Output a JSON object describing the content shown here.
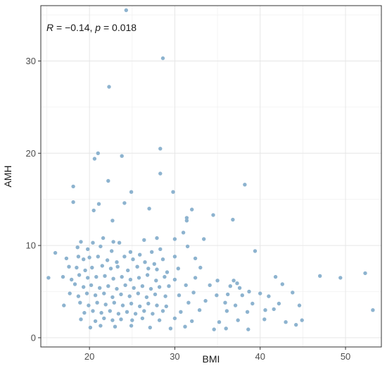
{
  "chart_data": {
    "type": "scatter",
    "xlabel": "BMI",
    "ylabel": "AMH",
    "annotation": {
      "R_label": "R",
      "R_text": " = −0.14, ",
      "p_label": "p",
      "p_text": " = 0.018"
    },
    "xlim": [
      14.3,
      54.2
    ],
    "ylim": [
      -1.0,
      36.0
    ],
    "x_ticks": [
      20,
      30,
      40,
      50
    ],
    "y_ticks": [
      0,
      10,
      20,
      30
    ],
    "grid": true,
    "point_color": "#8db3cf",
    "points": [
      [
        24.3,
        35.5
      ],
      [
        28.6,
        30.3
      ],
      [
        22.3,
        27.2
      ],
      [
        28.3,
        20.5
      ],
      [
        21.0,
        20.0
      ],
      [
        23.8,
        19.7
      ],
      [
        20.6,
        19.4
      ],
      [
        28.3,
        17.8
      ],
      [
        22.2,
        17.0
      ],
      [
        38.2,
        16.6
      ],
      [
        18.1,
        16.4
      ],
      [
        24.9,
        15.8
      ],
      [
        29.8,
        15.8
      ],
      [
        18.1,
        14.7
      ],
      [
        21.1,
        14.5
      ],
      [
        24.1,
        14.6
      ],
      [
        20.5,
        13.8
      ],
      [
        27.0,
        14.0
      ],
      [
        32.0,
        13.9
      ],
      [
        34.5,
        13.3
      ],
      [
        22.7,
        12.7
      ],
      [
        31.4,
        12.7
      ],
      [
        31.4,
        13.0
      ],
      [
        36.8,
        12.8
      ],
      [
        19.0,
        10.4
      ],
      [
        20.4,
        10.3
      ],
      [
        21.6,
        10.8
      ],
      [
        22.8,
        10.4
      ],
      [
        23.5,
        10.3
      ],
      [
        26.4,
        10.6
      ],
      [
        27.9,
        10.8
      ],
      [
        30.0,
        10.7
      ],
      [
        18.6,
        9.8
      ],
      [
        19.8,
        9.6
      ],
      [
        21.3,
        9.9
      ],
      [
        22.6,
        9.4
      ],
      [
        24.8,
        9.3
      ],
      [
        25.9,
        9.0
      ],
      [
        27.3,
        9.3
      ],
      [
        28.3,
        9.6
      ],
      [
        31.0,
        11.4
      ],
      [
        33.4,
        10.7
      ],
      [
        16.0,
        9.2
      ],
      [
        17.3,
        8.6
      ],
      [
        18.7,
        8.8
      ],
      [
        19.3,
        8.5
      ],
      [
        20.0,
        8.7
      ],
      [
        21.0,
        8.8
      ],
      [
        22.1,
        8.4
      ],
      [
        23.2,
        8.2
      ],
      [
        24.1,
        8.8
      ],
      [
        25.1,
        8.5
      ],
      [
        26.5,
        8.2
      ],
      [
        27.6,
        8.0
      ],
      [
        28.6,
        8.5
      ],
      [
        30.0,
        8.8
      ],
      [
        31.5,
        9.9
      ],
      [
        32.4,
        8.6
      ],
      [
        39.4,
        9.4
      ],
      [
        17.6,
        7.7
      ],
      [
        18.5,
        7.6
      ],
      [
        19.5,
        7.3
      ],
      [
        20.3,
        7.6
      ],
      [
        21.5,
        7.8
      ],
      [
        22.5,
        7.5
      ],
      [
        23.3,
        7.7
      ],
      [
        24.5,
        7.3
      ],
      [
        25.6,
        7.7
      ],
      [
        26.9,
        7.5
      ],
      [
        27.9,
        7.4
      ],
      [
        29.1,
        7.1
      ],
      [
        30.4,
        7.5
      ],
      [
        33.0,
        7.6
      ],
      [
        16.9,
        6.6
      ],
      [
        17.9,
        6.3
      ],
      [
        18.8,
        6.8
      ],
      [
        19.8,
        6.5
      ],
      [
        20.8,
        6.6
      ],
      [
        21.8,
        6.7
      ],
      [
        22.8,
        6.4
      ],
      [
        23.8,
        6.6
      ],
      [
        24.8,
        6.3
      ],
      [
        25.8,
        6.5
      ],
      [
        26.8,
        6.8
      ],
      [
        27.8,
        6.2
      ],
      [
        28.8,
        6.6
      ],
      [
        30.0,
        6.3
      ],
      [
        32.4,
        6.5
      ],
      [
        35.0,
        6.2
      ],
      [
        36.9,
        6.2
      ],
      [
        37.3,
        5.9
      ],
      [
        41.8,
        6.6
      ],
      [
        47.0,
        6.7
      ],
      [
        49.4,
        6.5
      ],
      [
        52.3,
        7.0
      ],
      [
        15.2,
        6.5
      ],
      [
        18.3,
        5.8
      ],
      [
        19.3,
        5.5
      ],
      [
        20.2,
        5.7
      ],
      [
        21.2,
        5.4
      ],
      [
        22.2,
        5.6
      ],
      [
        23.2,
        5.3
      ],
      [
        24.2,
        5.7
      ],
      [
        25.2,
        5.4
      ],
      [
        26.2,
        5.6
      ],
      [
        27.2,
        5.3
      ],
      [
        28.2,
        5.5
      ],
      [
        29.3,
        5.6
      ],
      [
        31.3,
        5.7
      ],
      [
        34.1,
        5.7
      ],
      [
        36.5,
        5.6
      ],
      [
        37.6,
        5.4
      ],
      [
        42.6,
        5.8
      ],
      [
        17.7,
        4.8
      ],
      [
        18.7,
        4.5
      ],
      [
        19.7,
        4.8
      ],
      [
        20.7,
        4.6
      ],
      [
        21.7,
        4.8
      ],
      [
        22.7,
        4.4
      ],
      [
        23.7,
        4.7
      ],
      [
        24.7,
        4.5
      ],
      [
        25.7,
        4.8
      ],
      [
        26.7,
        4.4
      ],
      [
        27.7,
        4.7
      ],
      [
        28.9,
        4.5
      ],
      [
        30.5,
        4.6
      ],
      [
        32.2,
        4.9
      ],
      [
        34.9,
        4.6
      ],
      [
        36.2,
        4.7
      ],
      [
        37.9,
        4.6
      ],
      [
        38.7,
        5.0
      ],
      [
        40.0,
        4.8
      ],
      [
        43.8,
        4.9
      ],
      [
        41.0,
        4.5
      ],
      [
        18.9,
        3.8
      ],
      [
        19.9,
        3.5
      ],
      [
        20.9,
        3.8
      ],
      [
        21.9,
        3.6
      ],
      [
        22.9,
        3.8
      ],
      [
        23.9,
        3.5
      ],
      [
        24.9,
        3.7
      ],
      [
        25.9,
        3.4
      ],
      [
        26.9,
        3.7
      ],
      [
        27.9,
        3.5
      ],
      [
        29.0,
        3.4
      ],
      [
        31.6,
        3.8
      ],
      [
        33.6,
        4.0
      ],
      [
        35.9,
        3.8
      ],
      [
        37.1,
        3.5
      ],
      [
        39.1,
        3.7
      ],
      [
        42.2,
        3.7
      ],
      [
        17.0,
        3.5
      ],
      [
        19.4,
        2.7
      ],
      [
        20.4,
        2.9
      ],
      [
        21.4,
        2.7
      ],
      [
        22.4,
        2.9
      ],
      [
        23.4,
        2.6
      ],
      [
        24.4,
        2.8
      ],
      [
        25.4,
        2.6
      ],
      [
        26.4,
        2.9
      ],
      [
        27.4,
        2.6
      ],
      [
        28.6,
        2.9
      ],
      [
        30.7,
        2.8
      ],
      [
        32.9,
        3.0
      ],
      [
        36.1,
        2.9
      ],
      [
        38.5,
        2.8
      ],
      [
        40.6,
        3.0
      ],
      [
        41.6,
        3.1
      ],
      [
        44.6,
        3.5
      ],
      [
        19.0,
        2.0
      ],
      [
        20.7,
        1.8
      ],
      [
        21.7,
        2.1
      ],
      [
        22.7,
        1.9
      ],
      [
        23.7,
        2.0
      ],
      [
        25.0,
        1.9
      ],
      [
        26.2,
        2.1
      ],
      [
        28.2,
        1.9
      ],
      [
        30.0,
        2.1
      ],
      [
        32.0,
        1.8
      ],
      [
        35.2,
        1.7
      ],
      [
        37.4,
        1.9
      ],
      [
        40.5,
        2.0
      ],
      [
        43.0,
        1.7
      ],
      [
        44.9,
        1.9
      ],
      [
        53.2,
        3.0
      ],
      [
        20.1,
        1.1
      ],
      [
        21.3,
        1.3
      ],
      [
        23.0,
        1.2
      ],
      [
        24.9,
        1.3
      ],
      [
        27.1,
        1.1
      ],
      [
        29.5,
        1.0
      ],
      [
        31.2,
        1.2
      ],
      [
        34.6,
        0.9
      ],
      [
        36.0,
        1.0
      ],
      [
        38.6,
        0.9
      ],
      [
        44.2,
        1.4
      ]
    ]
  }
}
